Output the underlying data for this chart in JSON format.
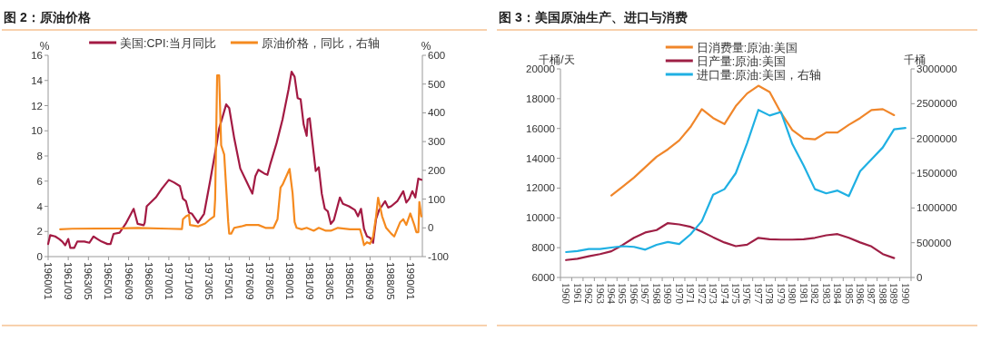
{
  "chart_data": [
    {
      "type": "line",
      "title": "图 2：原油价格",
      "ylabel": "%",
      "y2label": "%",
      "legend": "top",
      "xlim": [
        "1960-01",
        "1991-01"
      ],
      "xticks": [
        {
          "value": "1960-01",
          "label": "1960/01"
        },
        {
          "value": "1961-09",
          "label": "1961/09"
        },
        {
          "value": "1963-05",
          "label": "1963/05"
        },
        {
          "value": "1965-01",
          "label": "1965/01"
        },
        {
          "value": "1966-09",
          "label": "1966/09"
        },
        {
          "value": "1968-05",
          "label": "1968/05"
        },
        {
          "value": "1970-01",
          "label": "1970/01"
        },
        {
          "value": "1971-09",
          "label": "1971/09"
        },
        {
          "value": "1973-05",
          "label": "1973/05"
        },
        {
          "value": "1975-01",
          "label": "1975/01"
        },
        {
          "value": "1976-09",
          "label": "1976/09"
        },
        {
          "value": "1978-05",
          "label": "1978/05"
        },
        {
          "value": "1980-01",
          "label": "1980/01"
        },
        {
          "value": "1981-09",
          "label": "1981/09"
        },
        {
          "value": "1983-05",
          "label": "1983/05"
        },
        {
          "value": "1985-01",
          "label": "1985/01"
        },
        {
          "value": "1986-09",
          "label": "1986/09"
        },
        {
          "value": "1988-05",
          "label": "1988/05"
        },
        {
          "value": "1990-01",
          "label": "1990/01"
        }
      ],
      "ylim": [
        0,
        16
      ],
      "yticks": [
        0,
        2,
        4,
        6,
        8,
        10,
        12,
        14,
        16
      ],
      "y2lim": [
        -100,
        600
      ],
      "y2ticks": [
        -100,
        0,
        100,
        200,
        300,
        400,
        500,
        600
      ],
      "series": [
        {
          "name": "美国:CPI:当月同比",
          "color": "#a31a43",
          "x": [
            "1960-01",
            "1960-03",
            "1960-08",
            "1960-12",
            "1961-03",
            "1961-06",
            "1961-09",
            "1961-11",
            "1962-03",
            "1962-06",
            "1963-01",
            "1963-06",
            "1963-10",
            "1964-02",
            "1964-06",
            "1964-12",
            "1965-03",
            "1965-06",
            "1965-12",
            "1966-06",
            "1966-12",
            "1967-02",
            "1967-06",
            "1967-12",
            "1968-01",
            "1968-03",
            "1968-12",
            "1969-06",
            "1970-01",
            "1970-06",
            "1970-12",
            "1971-03",
            "1971-06",
            "1971-09",
            "1971-12",
            "1972-06",
            "1972-12",
            "1973-03",
            "1973-06",
            "1973-12",
            "1974-03",
            "1974-06",
            "1974-10",
            "1975-01",
            "1975-06",
            "1975-12",
            "1976-06",
            "1976-12",
            "1977-03",
            "1977-06",
            "1977-12",
            "1978-03",
            "1978-06",
            "1978-12",
            "1979-06",
            "1979-12",
            "1980-03",
            "1980-06",
            "1980-09",
            "1980-12",
            "1981-03",
            "1981-06",
            "1981-07",
            "1981-09",
            "1981-12",
            "1982-03",
            "1982-06",
            "1982-09",
            "1982-12",
            "1983-03",
            "1983-06",
            "1983-09",
            "1984-03",
            "1984-06",
            "1984-12",
            "1985-06",
            "1985-09",
            "1985-12",
            "1986-03",
            "1986-06",
            "1986-09",
            "1986-12",
            "1987-03",
            "1987-06",
            "1987-12",
            "1988-03",
            "1988-06",
            "1988-12",
            "1989-06",
            "1989-09",
            "1989-12",
            "1990-03",
            "1990-06",
            "1990-09",
            "1990-12"
          ],
          "values": [
            1.0,
            1.7,
            1.6,
            1.4,
            1.2,
            0.9,
            1.4,
            0.7,
            0.7,
            1.2,
            1.2,
            1.1,
            1.6,
            1.4,
            1.2,
            1.0,
            1.0,
            1.8,
            1.9,
            2.6,
            3.5,
            3.8,
            2.6,
            2.5,
            2.7,
            4.0,
            4.7,
            5.4,
            6.1,
            5.9,
            5.6,
            4.6,
            4.4,
            3.5,
            3.4,
            2.7,
            3.4,
            4.7,
            6.0,
            8.7,
            10.2,
            11.0,
            12.1,
            11.8,
            9.4,
            7.0,
            6.0,
            5.0,
            6.4,
            6.9,
            6.6,
            6.5,
            7.4,
            9.0,
            10.9,
            13.3,
            14.7,
            14.3,
            12.6,
            12.5,
            10.5,
            9.6,
            10.9,
            11.0,
            8.9,
            6.8,
            7.1,
            5.0,
            3.8,
            3.6,
            2.6,
            2.9,
            4.7,
            4.2,
            4.0,
            3.7,
            3.2,
            3.8,
            2.2,
            1.6,
            1.5,
            1.1,
            3.0,
            3.7,
            4.4,
            3.9,
            4.0,
            4.4,
            5.2,
            4.3,
            4.6,
            5.2,
            4.7,
            6.2,
            6.1
          ]
        },
        {
          "name": "原油价格，同比，右轴",
          "color": "#f58a1f",
          "axis": "y2",
          "x": [
            "1961-01",
            "1962-01",
            "1966-01",
            "1967-06",
            "1970-01",
            "1971-02",
            "1971-03",
            "1971-06",
            "1971-09",
            "1971-10",
            "1972-06",
            "1973-01",
            "1973-06",
            "1973-10",
            "1973-11",
            "1974-01",
            "1974-03",
            "1974-05",
            "1974-08",
            "1974-12",
            "1975-01",
            "1975-03",
            "1975-06",
            "1976-01",
            "1976-06",
            "1977-01",
            "1977-06",
            "1978-01",
            "1978-09",
            "1979-01",
            "1979-04",
            "1979-06",
            "1980-01",
            "1980-04",
            "1980-06",
            "1980-08",
            "1981-01",
            "1981-06",
            "1982-01",
            "1982-06",
            "1983-01",
            "1983-06",
            "1984-01",
            "1985-01",
            "1985-06",
            "1985-11",
            "1986-01",
            "1986-03",
            "1986-06",
            "1986-09",
            "1986-12",
            "1987-03",
            "1987-05",
            "1987-09",
            "1988-01",
            "1988-06",
            "1988-09",
            "1989-03",
            "1989-06",
            "1989-09",
            "1990-01",
            "1990-05",
            "1990-07",
            "1990-09",
            "1990-10",
            "1990-12"
          ],
          "values": [
            -5,
            -3,
            -2,
            0,
            -3,
            -4,
            30,
            40,
            45,
            10,
            5,
            15,
            30,
            40,
            100,
            530,
            530,
            287,
            255,
            20,
            -20,
            -20,
            0,
            5,
            10,
            10,
            10,
            0,
            0,
            30,
            140,
            150,
            205,
            120,
            20,
            0,
            -5,
            0,
            -10,
            0,
            -10,
            -10,
            0,
            -5,
            -5,
            -5,
            -30,
            -60,
            -50,
            -55,
            -30,
            40,
            105,
            40,
            0,
            -20,
            -30,
            20,
            30,
            10,
            50,
            10,
            -15,
            -15,
            90,
            40
          ]
        }
      ]
    },
    {
      "type": "line",
      "title": "图 3：美国原油生产、进口与消费",
      "ylabel": "千桶/天",
      "y2label": "千桶",
      "legend": "top",
      "categories": [
        "1960",
        "1961",
        "1962",
        "1963",
        "1964",
        "1965",
        "1966",
        "1967",
        "1968",
        "1969",
        "1970",
        "1971",
        "1972",
        "1973",
        "1974",
        "1975",
        "1976",
        "1977",
        "1978",
        "1979",
        "1980",
        "1981",
        "1982",
        "1983",
        "1984",
        "1985",
        "1986",
        "1987",
        "1988",
        "1989",
        "1990"
      ],
      "ylim": [
        6000,
        20000
      ],
      "yticks": [
        6000,
        8000,
        10000,
        12000,
        14000,
        16000,
        18000,
        20000
      ],
      "y2lim": [
        0,
        3000000
      ],
      "y2ticks": [
        0,
        500000,
        1000000,
        1500000,
        2000000,
        2500000,
        3000000
      ],
      "series": [
        {
          "name": "日消费量:原油:美国",
          "color": "#f0862a",
          "values": [
            null,
            null,
            null,
            null,
            11500,
            12100,
            12700,
            13400,
            14100,
            14600,
            15200,
            16100,
            17300,
            16700,
            16300,
            17500,
            18350,
            18870,
            18450,
            17050,
            15900,
            15330,
            15270,
            15730,
            15730,
            16250,
            16700,
            17240,
            17300,
            16900,
            null
          ]
        },
        {
          "name": "日产量:原油:美国",
          "color": "#9e1f45",
          "values": [
            7170,
            7260,
            7420,
            7570,
            7760,
            8180,
            8660,
            9020,
            9180,
            9650,
            9560,
            9400,
            9080,
            8700,
            8350,
            8100,
            8200,
            8660,
            8560,
            8540,
            8540,
            8560,
            8660,
            8830,
            8910,
            8660,
            8350,
            8080,
            7570,
            7300,
            null
          ]
        },
        {
          "name": "进口量:原油:美国，右轴",
          "color": "#1fb0e3",
          "axis": "y2",
          "values": [
            365000,
            380000,
            410000,
            410000,
            430000,
            450000,
            440000,
            400000,
            470000,
            510000,
            480000,
            620000,
            810000,
            1190000,
            1270000,
            1500000,
            1930000,
            2410000,
            2330000,
            2380000,
            1920000,
            1610000,
            1270000,
            1210000,
            1250000,
            1170000,
            1530000,
            1700000,
            1870000,
            2130000,
            2150000
          ]
        }
      ]
    }
  ]
}
